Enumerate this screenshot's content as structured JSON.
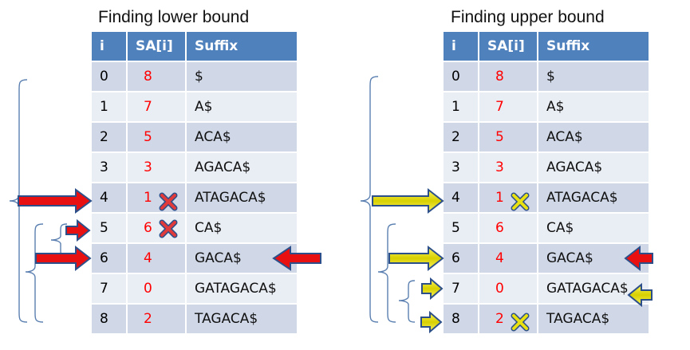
{
  "left": {
    "title": "Finding lower bound",
    "headers": [
      "i",
      "SA[i]",
      "Suffix"
    ],
    "rows": [
      {
        "i": "0",
        "sa": "8",
        "suffix": "$"
      },
      {
        "i": "1",
        "sa": "7",
        "suffix": "A$"
      },
      {
        "i": "2",
        "sa": "5",
        "suffix": "ACA$"
      },
      {
        "i": "3",
        "sa": "3",
        "suffix": "AGACA$"
      },
      {
        "i": "4",
        "sa": "1",
        "suffix": "ATAGACA$"
      },
      {
        "i": "5",
        "sa": "6",
        "suffix": "CA$"
      },
      {
        "i": "6",
        "sa": "4",
        "suffix": "GACA$"
      },
      {
        "i": "7",
        "sa": "0",
        "suffix": "GATAGACA$"
      },
      {
        "i": "8",
        "sa": "2",
        "suffix": "TAGACA$"
      }
    ],
    "arrow_color": "#e81010",
    "arrows_right_rows": [
      4,
      5,
      6
    ],
    "arrows_left_rows": [
      6
    ],
    "cross_rows": [
      4,
      5
    ]
  },
  "right": {
    "title": "Finding upper bound",
    "headers": [
      "i",
      "SA[i]",
      "Suffix"
    ],
    "rows": [
      {
        "i": "0",
        "sa": "8",
        "suffix": "$"
      },
      {
        "i": "1",
        "sa": "7",
        "suffix": "A$"
      },
      {
        "i": "2",
        "sa": "5",
        "suffix": "ACA$"
      },
      {
        "i": "3",
        "sa": "3",
        "suffix": "AGACA$"
      },
      {
        "i": "4",
        "sa": "1",
        "suffix": "ATAGACA$"
      },
      {
        "i": "5",
        "sa": "6",
        "suffix": "CA$"
      },
      {
        "i": "6",
        "sa": "4",
        "suffix": "GACA$"
      },
      {
        "i": "7",
        "sa": "0",
        "suffix": "GATAGACA$"
      },
      {
        "i": "8",
        "sa": "2",
        "suffix": "TAGACA$"
      }
    ],
    "arrow_color": "#e8e010",
    "arrows_right_rows": [
      4,
      6,
      7,
      8
    ],
    "arrows_left_rows": [
      6,
      7
    ],
    "cross_rows": [
      4,
      8
    ]
  },
  "colors": {
    "header": "#4f81bd",
    "row_dark": "#d0d8e8",
    "row_light": "#e9edf4",
    "sa_text": "#ff0000",
    "bracket": "#5a7fb0",
    "arrow_outline": "#2c4f8a",
    "cross_left": "#e03a3a",
    "cross_right": "#e8e010"
  }
}
